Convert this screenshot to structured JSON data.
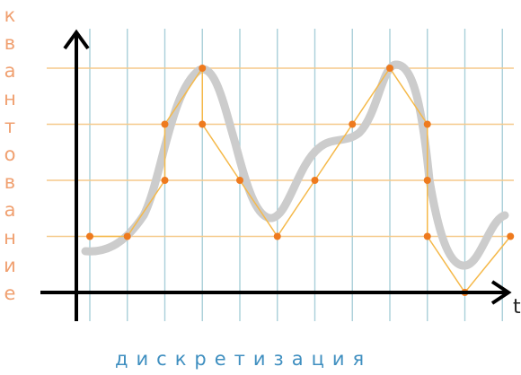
{
  "labels": {
    "vertical": "квантование",
    "horizontal": "дискретизация",
    "t_axis": "t"
  },
  "colors": {
    "grid_vertical": "#a9cfd9",
    "grid_horizontal": "#f5c98a",
    "analog_curve": "#cccccc",
    "sample_line": "#f5b94a",
    "sample_point": "#ee7a1e",
    "axes": "#000000",
    "vertical_label": "#f0a070",
    "horizontal_label": "#3f8fc0"
  }
}
